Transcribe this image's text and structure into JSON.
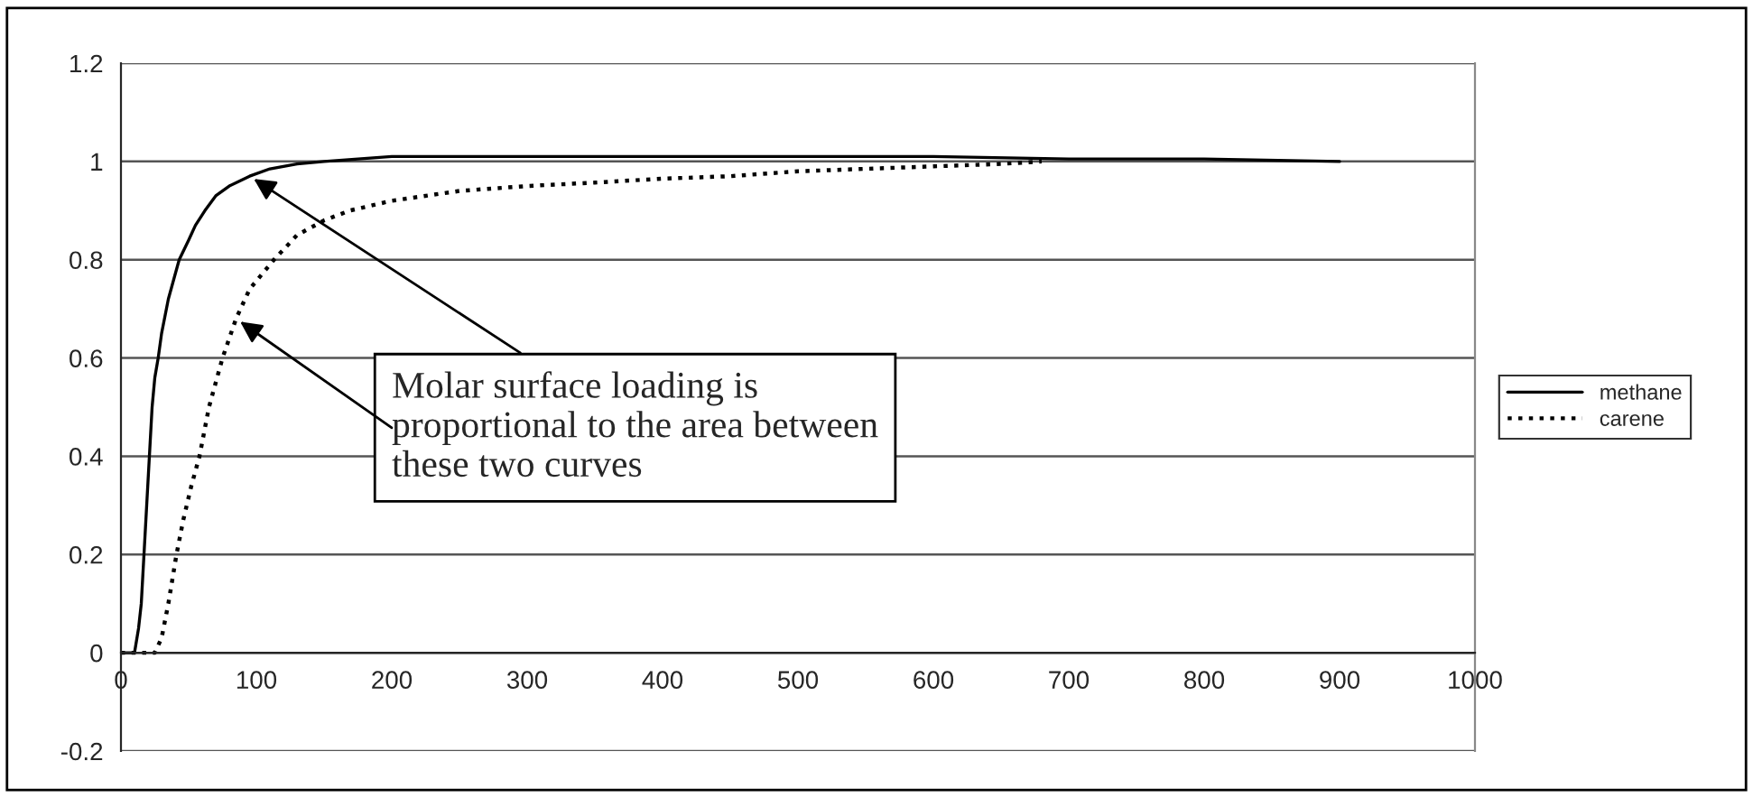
{
  "chart_data": {
    "type": "line",
    "xlim": [
      0,
      1000
    ],
    "xticks": [
      0,
      100,
      200,
      300,
      400,
      500,
      600,
      700,
      800,
      900,
      1000
    ],
    "ylim": [
      -0.2,
      1.2
    ],
    "yticks": [
      -0.2,
      0,
      0.2,
      0.4,
      0.6,
      0.8,
      1,
      1.2
    ],
    "grid": "y",
    "legend": "right",
    "marker": "none",
    "series": [
      {
        "name": "methane",
        "color": "#000000",
        "line_style": "solid",
        "x": [
          0,
          5,
          10,
          13,
          15,
          17,
          19,
          21,
          23,
          25,
          27.5,
          30,
          35,
          40,
          43,
          50,
          55,
          62,
          70,
          80,
          95,
          110,
          130,
          150,
          175,
          200,
          250,
          300,
          400,
          500,
          600,
          700,
          800,
          900
        ],
        "values": [
          0,
          0,
          0.0,
          0.05,
          0.1,
          0.2,
          0.3,
          0.4,
          0.5,
          0.56,
          0.6,
          0.65,
          0.72,
          0.77,
          0.8,
          0.84,
          0.87,
          0.9,
          0.93,
          0.95,
          0.97,
          0.985,
          0.995,
          1.0,
          1.005,
          1.01,
          1.01,
          1.01,
          1.01,
          1.01,
          1.01,
          1.005,
          1.005,
          1.0
        ]
      },
      {
        "name": "carene",
        "color": "#000000",
        "line_style": "dotted",
        "x": [
          0,
          15,
          25,
          30,
          35,
          41,
          46,
          52,
          58,
          65,
          75,
          85,
          95,
          113,
          130,
          150,
          169,
          200,
          250,
          300,
          350,
          400,
          450,
          500,
          550,
          600,
          650,
          680
        ],
        "values": [
          0,
          0,
          0.0,
          0.03,
          0.1,
          0.2,
          0.27,
          0.34,
          0.4,
          0.5,
          0.6,
          0.68,
          0.74,
          0.8,
          0.85,
          0.88,
          0.9,
          0.92,
          0.94,
          0.95,
          0.957,
          0.965,
          0.97,
          0.98,
          0.985,
          0.99,
          0.995,
          1.0
        ]
      }
    ],
    "annotations": [
      {
        "text": "Molar surface loading is proportional to the area between these two curves",
        "x": 95,
        "y": 0.97
      }
    ]
  }
}
